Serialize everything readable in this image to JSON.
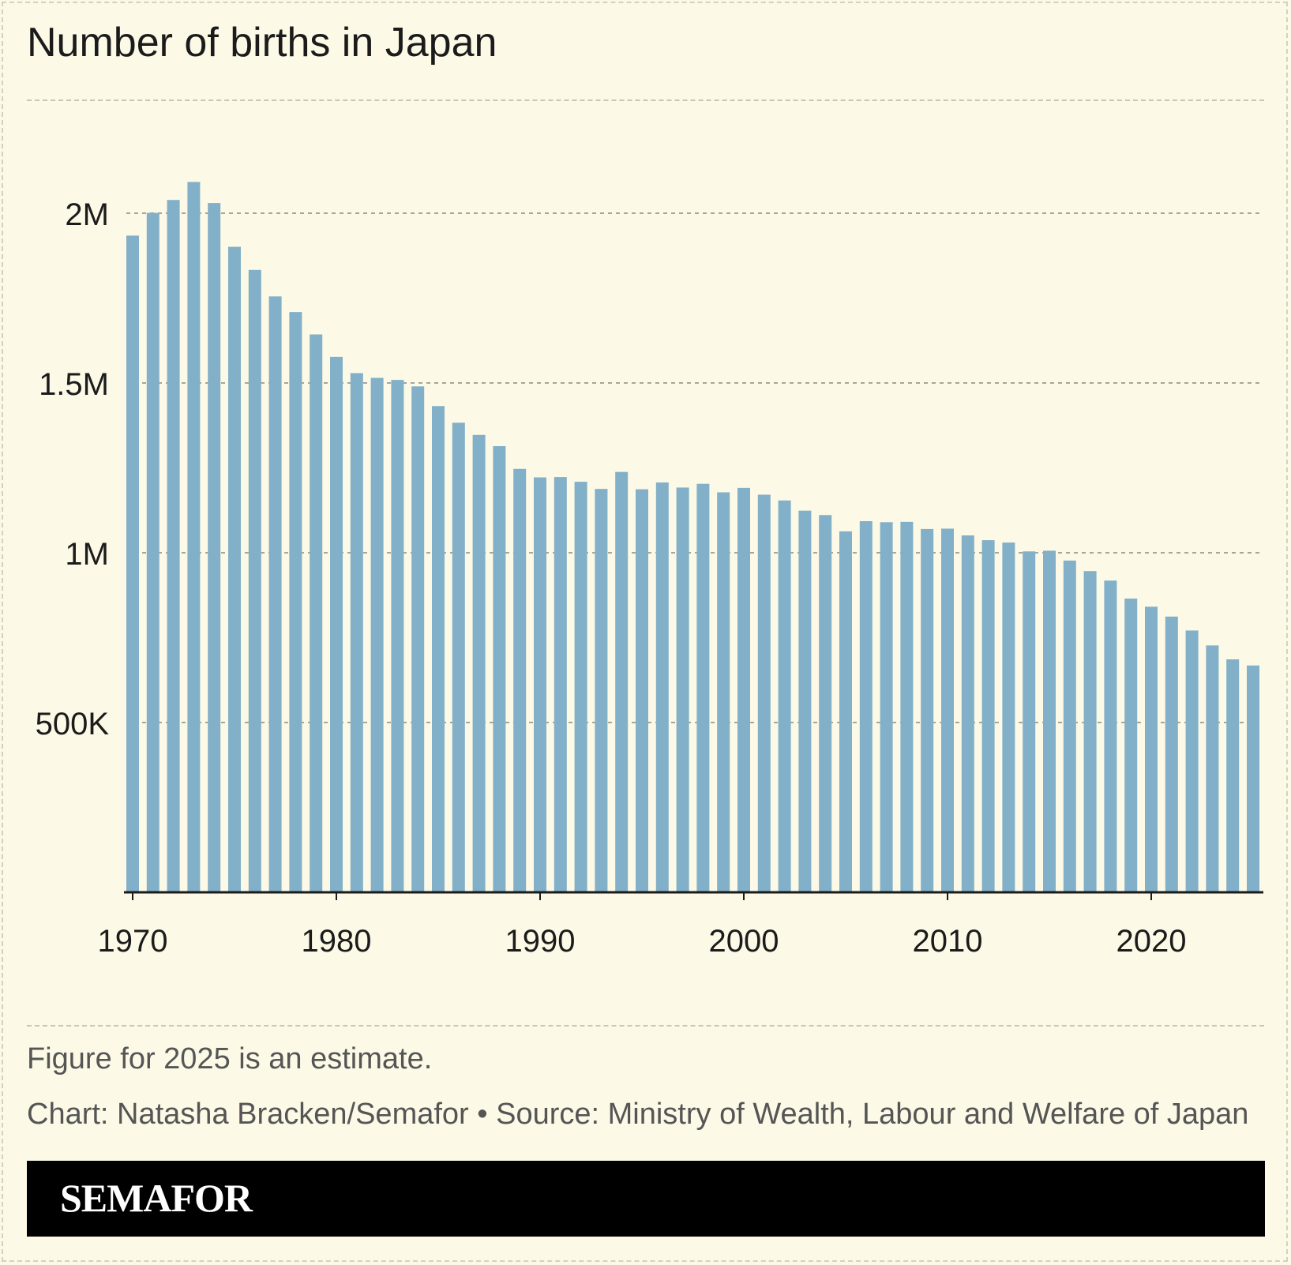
{
  "title": "Number of births in Japan",
  "notes": {
    "estimate": "Figure for 2025 is an estimate.",
    "credit": "Chart: Natasha Bracken/Semafor • Source: Ministry of Wealth, Labour and Welfare of Japan"
  },
  "brand": "SEMAFOR",
  "colors": {
    "bar": "#82b0c8",
    "background": "#fcf9e6",
    "grid": "#a8a59a",
    "axis": "#1b1b1b"
  },
  "chart_data": {
    "type": "bar",
    "title": "Number of births in Japan",
    "xlabel": "",
    "ylabel": "",
    "ylim": [
      0,
      2250000
    ],
    "grid": true,
    "y_ticks": [
      {
        "value": 500000,
        "label": "500K"
      },
      {
        "value": 1000000,
        "label": "1M"
      },
      {
        "value": 1500000,
        "label": "1.5M"
      },
      {
        "value": 2000000,
        "label": "2M"
      }
    ],
    "x_ticks": [
      {
        "value": 1970,
        "label": "1970"
      },
      {
        "value": 1980,
        "label": "1980"
      },
      {
        "value": 1990,
        "label": "1990"
      },
      {
        "value": 2000,
        "label": "2000"
      },
      {
        "value": 2010,
        "label": "2010"
      },
      {
        "value": 2020,
        "label": "2020"
      }
    ],
    "categories": [
      1970,
      1971,
      1972,
      1973,
      1974,
      1975,
      1976,
      1977,
      1978,
      1979,
      1980,
      1981,
      1982,
      1983,
      1984,
      1985,
      1986,
      1987,
      1988,
      1989,
      1990,
      1991,
      1992,
      1993,
      1994,
      1995,
      1996,
      1997,
      1998,
      1999,
      2000,
      2001,
      2002,
      2003,
      2004,
      2005,
      2006,
      2007,
      2008,
      2009,
      2010,
      2011,
      2012,
      2013,
      2014,
      2015,
      2016,
      2017,
      2018,
      2019,
      2020,
      2021,
      2022,
      2023,
      2024,
      2025
    ],
    "values": [
      1934000,
      2001000,
      2039000,
      2092000,
      2030000,
      1901000,
      1833000,
      1755000,
      1709000,
      1643000,
      1577000,
      1529000,
      1515000,
      1509000,
      1490000,
      1432000,
      1383000,
      1347000,
      1314000,
      1247000,
      1222000,
      1223000,
      1209000,
      1188000,
      1238000,
      1187000,
      1207000,
      1192000,
      1203000,
      1178000,
      1191000,
      1171000,
      1154000,
      1124000,
      1111000,
      1063000,
      1093000,
      1090000,
      1091000,
      1070000,
      1071000,
      1051000,
      1037000,
      1030000,
      1004000,
      1006000,
      977000,
      946000,
      918000,
      865000,
      841000,
      812000,
      771000,
      727000,
      686000,
      668000
    ]
  }
}
